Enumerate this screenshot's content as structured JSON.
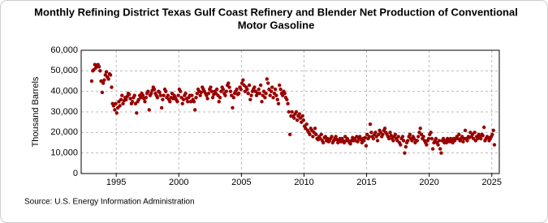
{
  "chart_data": {
    "type": "scatter",
    "title": "Monthly Refining District Texas Gulf Coast Refinery and Blender Net Production of Conventional Motor Gasoline",
    "y_label": "Thousand Barrels",
    "source": "Source: U.S. Energy Information Administration",
    "color": "#990000",
    "grid": true,
    "xlim": [
      1992.2,
      2025.6
    ],
    "xticks": [
      1995,
      2000,
      2005,
      2010,
      2015,
      2020,
      2025
    ],
    "ylim": [
      0,
      60000
    ],
    "yticks": [
      0,
      {
        "value": 10000,
        "label": "10,000"
      },
      {
        "value": 20000,
        "label": "20,000"
      },
      {
        "value": 30000,
        "label": "30,000"
      },
      {
        "value": 40000,
        "label": "40,000"
      },
      {
        "value": 50000,
        "label": "50,000"
      },
      {
        "value": 60000,
        "label": "60,000"
      }
    ],
    "x": [
      1993.04,
      1993.13,
      1993.21,
      1993.29,
      1993.38,
      1993.46,
      1993.54,
      1993.63,
      1993.71,
      1993.79,
      1993.88,
      1993.96,
      1994.04,
      1994.13,
      1994.21,
      1994.29,
      1994.38,
      1994.46,
      1994.54,
      1994.63,
      1994.71,
      1994.79,
      1994.88,
      1994.96,
      1995.04,
      1995.13,
      1995.21,
      1995.29,
      1995.38,
      1995.46,
      1995.54,
      1995.63,
      1995.71,
      1995.79,
      1995.88,
      1995.96,
      1996.04,
      1996.13,
      1996.21,
      1996.29,
      1996.38,
      1996.46,
      1996.54,
      1996.63,
      1996.71,
      1996.79,
      1996.88,
      1996.96,
      1997.04,
      1997.13,
      1997.21,
      1997.29,
      1997.38,
      1997.46,
      1997.54,
      1997.63,
      1997.71,
      1997.79,
      1997.88,
      1997.96,
      1998.04,
      1998.13,
      1998.21,
      1998.29,
      1998.38,
      1998.46,
      1998.54,
      1998.63,
      1998.71,
      1998.79,
      1998.88,
      1998.96,
      1999.04,
      1999.13,
      1999.21,
      1999.29,
      1999.38,
      1999.46,
      1999.54,
      1999.63,
      1999.71,
      1999.79,
      1999.88,
      1999.96,
      2000.04,
      2000.13,
      2000.21,
      2000.29,
      2000.38,
      2000.46,
      2000.54,
      2000.63,
      2000.71,
      2000.79,
      2000.88,
      2000.96,
      2001.04,
      2001.13,
      2001.21,
      2001.29,
      2001.38,
      2001.46,
      2001.54,
      2001.63,
      2001.71,
      2001.79,
      2001.88,
      2001.96,
      2002.04,
      2002.13,
      2002.21,
      2002.29,
      2002.38,
      2002.46,
      2002.54,
      2002.63,
      2002.71,
      2002.79,
      2002.88,
      2002.96,
      2003.04,
      2003.13,
      2003.21,
      2003.29,
      2003.38,
      2003.46,
      2003.54,
      2003.63,
      2003.71,
      2003.79,
      2003.88,
      2003.96,
      2004.04,
      2004.13,
      2004.21,
      2004.29,
      2004.38,
      2004.46,
      2004.54,
      2004.63,
      2004.71,
      2004.79,
      2004.88,
      2004.96,
      2005.04,
      2005.13,
      2005.21,
      2005.29,
      2005.38,
      2005.46,
      2005.54,
      2005.63,
      2005.71,
      2005.79,
      2005.88,
      2005.96,
      2006.04,
      2006.13,
      2006.21,
      2006.29,
      2006.38,
      2006.46,
      2006.54,
      2006.63,
      2006.71,
      2006.79,
      2006.88,
      2006.96,
      2007.04,
      2007.13,
      2007.21,
      2007.29,
      2007.38,
      2007.46,
      2007.54,
      2007.63,
      2007.71,
      2007.79,
      2007.88,
      2007.96,
      2008.04,
      2008.13,
      2008.21,
      2008.29,
      2008.38,
      2008.46,
      2008.54,
      2008.63,
      2008.71,
      2008.79,
      2008.88,
      2008.96,
      2009.04,
      2009.13,
      2009.21,
      2009.29,
      2009.38,
      2009.46,
      2009.54,
      2009.63,
      2009.71,
      2009.79,
      2009.88,
      2009.96,
      2010.04,
      2010.13,
      2010.21,
      2010.29,
      2010.38,
      2010.46,
      2010.54,
      2010.63,
      2010.71,
      2010.79,
      2010.88,
      2010.96,
      2011.04,
      2011.13,
      2011.21,
      2011.29,
      2011.38,
      2011.46,
      2011.54,
      2011.63,
      2011.71,
      2011.79,
      2011.88,
      2011.96,
      2012.04,
      2012.13,
      2012.21,
      2012.29,
      2012.38,
      2012.46,
      2012.54,
      2012.63,
      2012.71,
      2012.79,
      2012.88,
      2012.96,
      2013.04,
      2013.13,
      2013.21,
      2013.29,
      2013.38,
      2013.46,
      2013.54,
      2013.63,
      2013.71,
      2013.79,
      2013.88,
      2013.96,
      2014.04,
      2014.13,
      2014.21,
      2014.29,
      2014.38,
      2014.46,
      2014.54,
      2014.63,
      2014.71,
      2014.79,
      2014.88,
      2014.96,
      2015.04,
      2015.13,
      2015.21,
      2015.29,
      2015.38,
      2015.46,
      2015.54,
      2015.63,
      2015.71,
      2015.79,
      2015.88,
      2015.96,
      2016.04,
      2016.13,
      2016.21,
      2016.29,
      2016.38,
      2016.46,
      2016.54,
      2016.63,
      2016.71,
      2016.79,
      2016.88,
      2016.96,
      2017.04,
      2017.13,
      2017.21,
      2017.29,
      2017.38,
      2017.46,
      2017.54,
      2017.63,
      2017.71,
      2017.79,
      2017.88,
      2017.96,
      2018.04,
      2018.13,
      2018.21,
      2018.29,
      2018.38,
      2018.46,
      2018.54,
      2018.63,
      2018.71,
      2018.79,
      2018.88,
      2018.96,
      2019.04,
      2019.13,
      2019.21,
      2019.29,
      2019.38,
      2019.46,
      2019.54,
      2019.63,
      2019.71,
      2019.79,
      2019.88,
      2019.96,
      2020.04,
      2020.13,
      2020.21,
      2020.29,
      2020.38,
      2020.46,
      2020.54,
      2020.63,
      2020.71,
      2020.79,
      2020.88,
      2020.96,
      2021.04,
      2021.13,
      2021.21,
      2021.29,
      2021.38,
      2021.46,
      2021.54,
      2021.63,
      2021.71,
      2021.79,
      2021.88,
      2021.96,
      2022.04,
      2022.13,
      2022.21,
      2022.29,
      2022.38,
      2022.46,
      2022.54,
      2022.63,
      2022.71,
      2022.79,
      2022.88,
      2022.96,
      2023.04,
      2023.13,
      2023.21,
      2023.29,
      2023.38,
      2023.46,
      2023.54,
      2023.63,
      2023.71,
      2023.79,
      2023.88,
      2023.96,
      2024.04,
      2024.13,
      2024.21,
      2024.29,
      2024.38,
      2024.46,
      2024.54,
      2024.63,
      2024.71,
      2024.79,
      2024.88,
      2024.96,
      2025.04,
      2025.13,
      2025.21
    ],
    "values": [
      45000,
      50000,
      50500,
      53000,
      51500,
      52500,
      53000,
      52000,
      50000,
      45000,
      39500,
      44000,
      45500,
      48000,
      49500,
      47000,
      46000,
      48500,
      48000,
      42000,
      34000,
      33000,
      31000,
      34000,
      29500,
      32000,
      35000,
      33000,
      36000,
      38000,
      34000,
      35500,
      37000,
      36000,
      37500,
      39000,
      38500,
      36500,
      34000,
      35000,
      37000,
      38000,
      34000,
      29500,
      35000,
      36000,
      38000,
      37000,
      39000,
      38000,
      36500,
      35000,
      37000,
      39000,
      40000,
      31000,
      38000,
      39000,
      40500,
      42000,
      41000,
      39000,
      38000,
      37000,
      40000,
      39500,
      38000,
      32000,
      36000,
      38000,
      41000,
      40000,
      37000,
      38000,
      36000,
      35000,
      37000,
      39000,
      36500,
      38000,
      37000,
      36000,
      35000,
      38000,
      41000,
      40000,
      37000,
      34000,
      36000,
      38000,
      39000,
      36500,
      35000,
      37000,
      38000,
      35000,
      38000,
      36000,
      35000,
      31000,
      37000,
      39000,
      41000,
      40000,
      38000,
      39500,
      42000,
      41000,
      40000,
      39000,
      38000,
      36500,
      39000,
      41000,
      42000,
      40000,
      37000,
      38500,
      40000,
      39000,
      41000,
      38000,
      35000,
      37000,
      40000,
      42000,
      41000,
      39000,
      38000,
      40000,
      43000,
      44000,
      42000,
      40000,
      38000,
      32000,
      37000,
      39000,
      40000,
      41000,
      38500,
      39000,
      42000,
      41000,
      44000,
      45500,
      43000,
      40000,
      42000,
      41000,
      39000,
      43000,
      36000,
      38000,
      40000,
      41000,
      42000,
      40000,
      38000,
      39000,
      41000,
      39000,
      43000,
      35000,
      38000,
      40000,
      37000,
      39000,
      46000,
      44000,
      41000,
      38000,
      40000,
      42000,
      37000,
      39000,
      41000,
      38000,
      36000,
      34000,
      43000,
      41000,
      39000,
      38000,
      40000,
      39000,
      37000,
      36000,
      34000,
      30000,
      19000,
      28000,
      30000,
      28000,
      27000,
      29000,
      30000,
      26000,
      28000,
      29000,
      27000,
      25000,
      28000,
      26000,
      23000,
      22000,
      24000,
      21000,
      20000,
      19000,
      22000,
      21000,
      18000,
      20000,
      22000,
      19000,
      17000,
      16500,
      18000,
      17000,
      19000,
      16000,
      15000,
      17500,
      18000,
      16000,
      17000,
      15500,
      16000,
      17000,
      18000,
      15000,
      16000,
      17000,
      18000,
      16500,
      15000,
      16000,
      17000,
      15500,
      17000,
      16000,
      15000,
      18000,
      16000,
      17000,
      16000,
      15000,
      14500,
      16000,
      17500,
      16000,
      17000,
      16000,
      18000,
      15500,
      17000,
      18000,
      16500,
      15000,
      17000,
      16000,
      17500,
      13500,
      19000,
      17000,
      18000,
      24000,
      20000,
      18000,
      17000,
      19000,
      20000,
      18000,
      16000,
      19000,
      21000,
      20000,
      18000,
      19000,
      21000,
      22000,
      20000,
      19000,
      18000,
      17000,
      20000,
      18500,
      17000,
      16000,
      18000,
      19000,
      17000,
      16000,
      18000,
      15000,
      14000,
      17000,
      18000,
      16000,
      10000,
      13000,
      15000,
      16000,
      18000,
      19000,
      17000,
      16000,
      18000,
      17000,
      15000,
      16000,
      16000,
      18000,
      20000,
      22000,
      19000,
      17000,
      18000,
      16000,
      15000,
      14000,
      16000,
      17000,
      19000,
      20000,
      17000,
      12000,
      15000,
      16000,
      17000,
      15000,
      14000,
      16000,
      12000,
      10000,
      16000,
      17000,
      15000,
      16000,
      15000,
      17000,
      16000,
      15500,
      17000,
      16000,
      15000,
      17000,
      16000,
      17000,
      18000,
      17000,
      19000,
      16000,
      17000,
      18000,
      15500,
      17000,
      21000,
      17000,
      16000,
      18000,
      17500,
      20000,
      18000,
      19000,
      17000,
      20000,
      16000,
      18000,
      17000,
      19000,
      18000,
      17000,
      19000,
      18500,
      22500,
      16000,
      17000,
      18000,
      17500,
      16000,
      17000,
      18000,
      19000,
      21000,
      14000
    ]
  }
}
